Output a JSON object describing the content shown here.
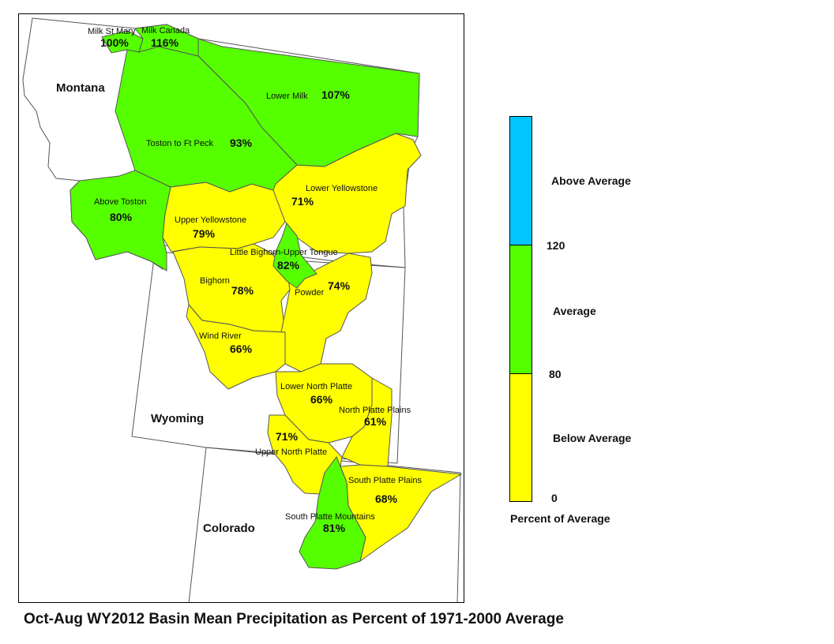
{
  "caption": "Oct-Aug WY2012 Basin Mean Precipitation as Percent of 1971-2000 Average",
  "colors": {
    "below_average": "#ffff00",
    "average": "#55ff00",
    "above_average": "#00c5ff",
    "boundary": "#555555"
  },
  "states": {
    "montana": "Montana",
    "wyoming": "Wyoming",
    "colorado": "Colorado"
  },
  "basins": {
    "milk_st_mary": {
      "name": "Milk St Mary",
      "percent": "100%",
      "category": "average"
    },
    "milk_canada": {
      "name": "Milk Canada",
      "percent": "116%",
      "category": "average"
    },
    "lower_milk": {
      "name": "Lower Milk",
      "percent": "107%",
      "category": "average"
    },
    "toston_ft_peck": {
      "name": "Toston to Ft Peck",
      "percent": "93%",
      "category": "average"
    },
    "above_toston": {
      "name": "Above Toston",
      "percent": "80%",
      "category": "average"
    },
    "lower_yellowstone": {
      "name": "Lower Yellowstone",
      "percent": "71%",
      "category": "below_average"
    },
    "upper_yellowstone": {
      "name": "Upper Yellowstone",
      "percent": "79%",
      "category": "below_average"
    },
    "little_bighorn": {
      "name": "Little Bighorn-Upper Tongue",
      "percent": "82%",
      "category": "average"
    },
    "bighorn": {
      "name": "Bighorn",
      "percent": "78%",
      "category": "below_average"
    },
    "powder": {
      "name": "Powder",
      "percent": "74%",
      "category": "below_average"
    },
    "wind_river": {
      "name": "Wind River",
      "percent": "66%",
      "category": "below_average"
    },
    "lower_north_platte": {
      "name": "Lower North Platte",
      "percent": "66%",
      "category": "below_average"
    },
    "north_platte_plains": {
      "name": "North Platte Plains",
      "percent": "61%",
      "category": "below_average"
    },
    "upper_north_platte": {
      "name": "Upper North Platte",
      "percent": "71%",
      "category": "below_average"
    },
    "south_platte_plains": {
      "name": "South Platte Plains",
      "percent": "68%",
      "category": "below_average"
    },
    "south_platte_mountains": {
      "name": "South Platte Mountains",
      "percent": "81%",
      "category": "average"
    }
  },
  "legend": {
    "title": "Percent of Average",
    "above_label": "Above Average",
    "average_label": "Average",
    "below_label": "Below Average",
    "tick_120": "120",
    "tick_80": "80",
    "tick_0": "0",
    "bins": [
      {
        "category": "above_average",
        "min": 120,
        "max": null
      },
      {
        "category": "average",
        "min": 80,
        "max": 120
      },
      {
        "category": "below_average",
        "min": 0,
        "max": 80
      }
    ]
  }
}
